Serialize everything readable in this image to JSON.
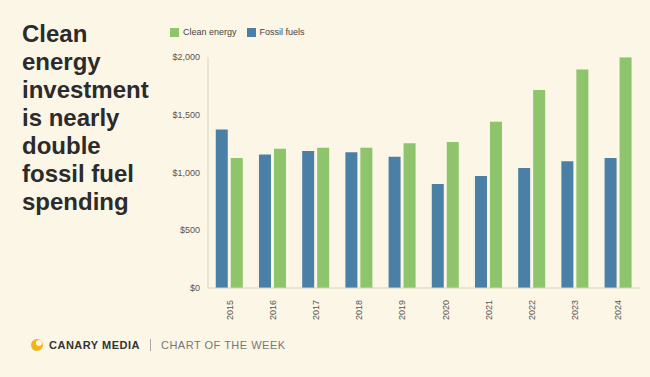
{
  "chart_data": {
    "type": "bar",
    "title": "Clean energy investment is nearly double fossil fuel spending",
    "categories": [
      "2015",
      "2016",
      "2017",
      "2018",
      "2019",
      "2020",
      "2021",
      "2022",
      "2023",
      "2024"
    ],
    "series": [
      {
        "name": "Fossil fuels",
        "color": "#4a80a6",
        "values": [
          1373,
          1157,
          1186,
          1176,
          1137,
          902,
          971,
          1039,
          1098,
          1127
        ]
      },
      {
        "name": "Clean energy",
        "color": "#8dc46c",
        "values": [
          1127,
          1206,
          1216,
          1216,
          1255,
          1265,
          1441,
          1716,
          1892,
          2000
        ]
      }
    ],
    "ylim": [
      0,
      2000
    ],
    "yticks": [
      {
        "value": 0,
        "label": "$0"
      },
      {
        "value": 500,
        "label": "$500"
      },
      {
        "value": 1000,
        "label": "$1,000"
      },
      {
        "value": 1500,
        "label": "$1,500"
      },
      {
        "value": 2000,
        "label": "$2,000"
      }
    ],
    "grid": false,
    "legend": "top-left",
    "annotations": [
      "CANARY MEDIA",
      "CHART OF THE WEEK"
    ]
  }
}
